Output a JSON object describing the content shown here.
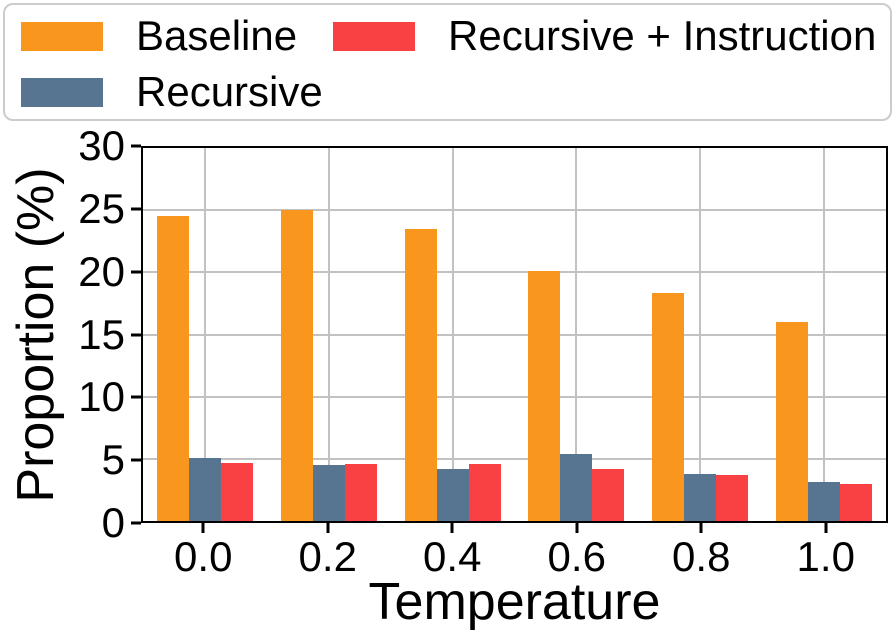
{
  "legend": {
    "items": [
      {
        "label": "Baseline",
        "color": "#F8961E"
      },
      {
        "label": "Recursive",
        "color": "#577590"
      },
      {
        "label": "Recursive + Instruction",
        "color": "#F94144"
      }
    ]
  },
  "axes": {
    "xlabel": "Temperature",
    "ylabel": "Proportion (%)"
  },
  "chart_data": {
    "type": "bar",
    "title": "",
    "xlabel": "Temperature",
    "ylabel": "Proportion (%)",
    "categories": [
      "0.0",
      "0.2",
      "0.4",
      "0.6",
      "0.8",
      "1.0"
    ],
    "series": [
      {
        "name": "Baseline",
        "color": "#F8961E",
        "values": [
          24.5,
          25.0,
          23.5,
          20.1,
          18.3,
          16.0
        ]
      },
      {
        "name": "Recursive",
        "color": "#577590",
        "values": [
          5.1,
          4.5,
          4.2,
          5.4,
          3.8,
          3.1
        ]
      },
      {
        "name": "Recursive + Instruction",
        "color": "#F94144",
        "values": [
          4.7,
          4.6,
          4.6,
          4.2,
          3.7,
          3.0
        ]
      }
    ],
    "ylim": [
      0,
      30
    ],
    "yticks": [
      0,
      5,
      10,
      15,
      20,
      25,
      30
    ],
    "grid": true,
    "grid_color": "#c2c2c2",
    "legend_position": "top"
  }
}
